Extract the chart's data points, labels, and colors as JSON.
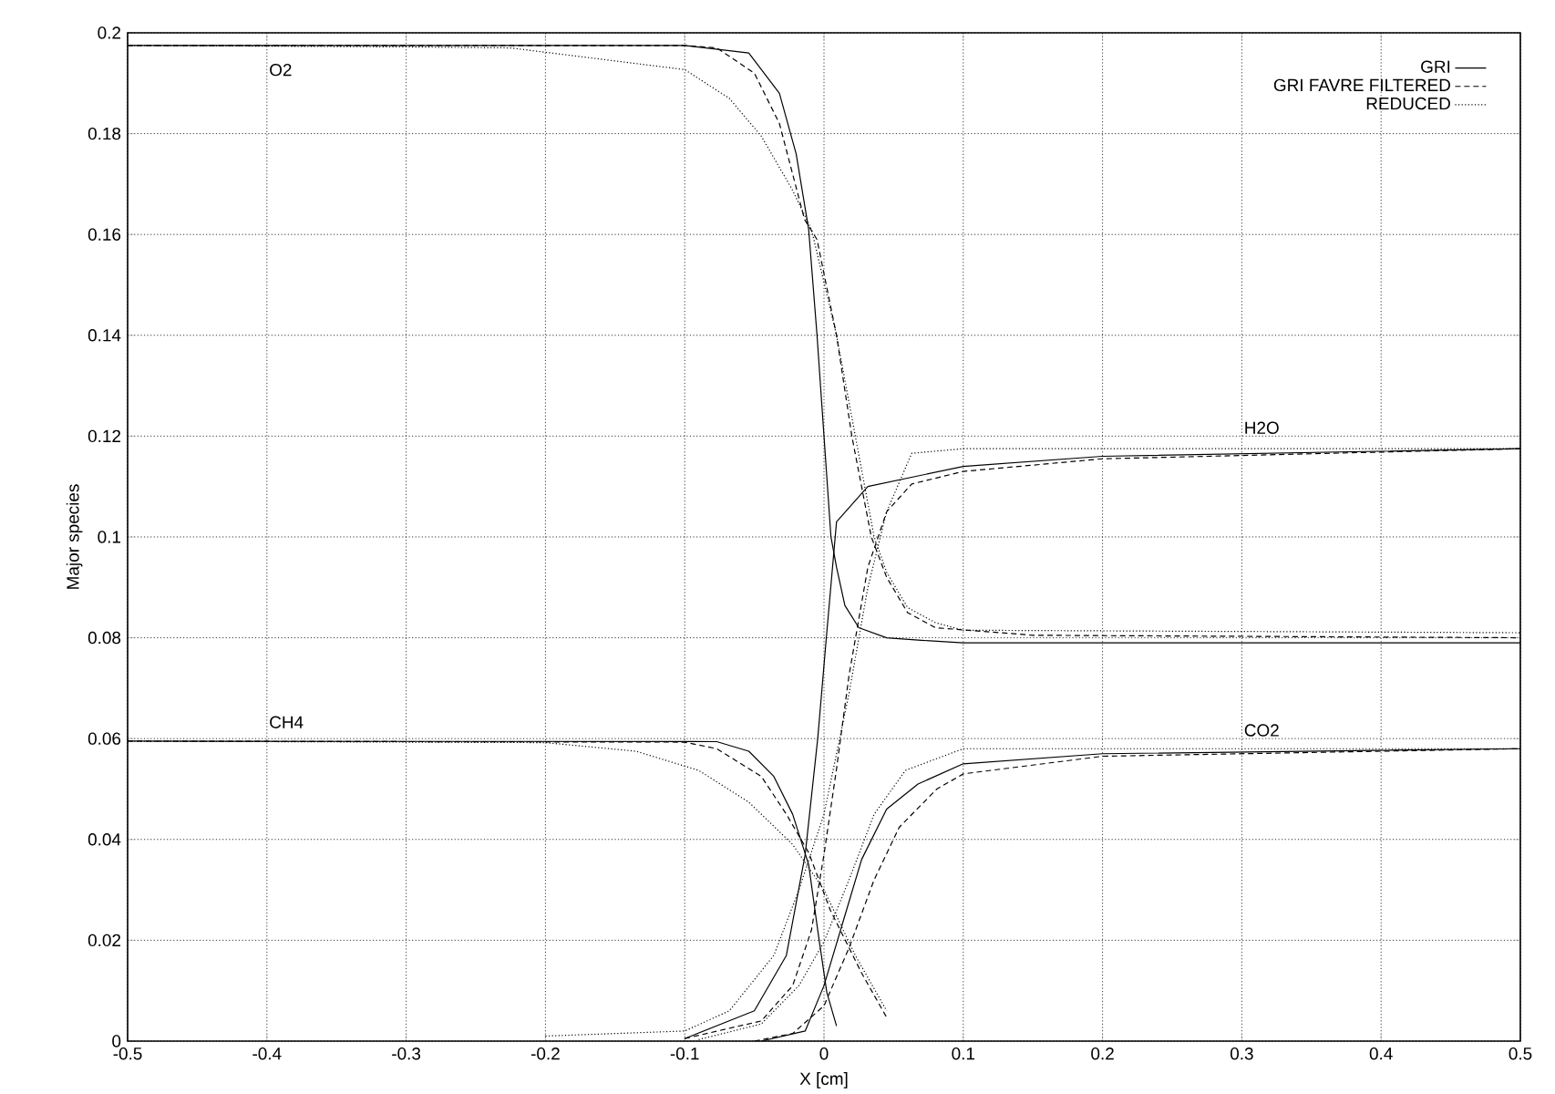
{
  "chart_data": {
    "type": "line",
    "xlabel": "X [cm]",
    "ylabel": "Major species",
    "xlim": [
      -0.5,
      0.5
    ],
    "ylim": [
      0,
      0.2
    ],
    "xticks": [
      -0.5,
      -0.4,
      -0.3,
      -0.2,
      -0.1,
      0,
      0.1,
      0.2,
      0.3,
      0.4,
      0.5
    ],
    "yticks": [
      0,
      0.02,
      0.04,
      0.06,
      0.08,
      0.1,
      0.12,
      0.14,
      0.16,
      0.18,
      0.2
    ],
    "grid": true,
    "legend": "top right",
    "marker": "none",
    "annotations": [
      "O2",
      "CH4",
      "H2O",
      "CO2"
    ],
    "series": [
      {
        "name": "GRI",
        "color": "#000000",
        "line_style": "solid",
        "x": [
          -0.5,
          -0.1,
          -0.054,
          -0.032,
          -0.02,
          -0.011,
          -0.005,
          0,
          0.005,
          0.009,
          0.015,
          0.025,
          0.045,
          0.07,
          0.1,
          0.2,
          0.5
        ],
        "values": [
          0.1975,
          0.1975,
          0.196,
          0.188,
          0.176,
          0.161,
          0.14,
          0.12,
          0.1,
          0.094,
          0.0864,
          0.082,
          0.08,
          0.0795,
          0.079,
          0.079,
          0.079
        ]
      },
      {
        "name": "GRI FAVRE FILTERED",
        "color": "#000000",
        "line_style": "dashed",
        "x": [
          -0.5,
          -0.1,
          -0.077,
          -0.05,
          -0.032,
          -0.014,
          -0.005,
          0.009,
          0.02,
          0.034,
          0.045,
          0.06,
          0.08,
          0.15,
          0.5
        ],
        "values": [
          0.1975,
          0.1975,
          0.197,
          0.192,
          0.182,
          0.163,
          0.159,
          0.14,
          0.12,
          0.1,
          0.092,
          0.085,
          0.082,
          0.0805,
          0.08
        ]
      },
      {
        "name": "REDUCED",
        "color": "#000000",
        "line_style": "dotted",
        "x": [
          -0.5,
          -0.3,
          -0.225,
          -0.1,
          -0.068,
          -0.045,
          -0.023,
          -0.009,
          0.009,
          0.0225,
          0.036,
          0.045,
          0.06,
          0.08,
          0.1,
          0.5
        ],
        "values": [
          0.1975,
          0.1972,
          0.197,
          0.1927,
          0.187,
          0.1795,
          0.169,
          0.161,
          0.14,
          0.12,
          0.1,
          0.093,
          0.086,
          0.083,
          0.0815,
          0.081
        ]
      },
      {
        "color": "#000000",
        "line_style": "solid",
        "x": [
          -0.1,
          -0.05,
          -0.027,
          -0.0135,
          -0.0045,
          0.002,
          0.009,
          0.0315,
          0.1,
          0.2,
          0.5
        ],
        "values": [
          0.0005,
          0.006,
          0.017,
          0.037,
          0.06,
          0.081,
          0.103,
          0.11,
          0.114,
          0.116,
          0.1175
        ]
      },
      {
        "color": "#000000",
        "line_style": "dashed",
        "x": [
          -0.1,
          -0.045,
          -0.0225,
          -0.009,
          0,
          0.009,
          0.018,
          0.0315,
          0.045,
          0.063,
          0.1,
          0.2,
          0.5
        ],
        "values": [
          0.0005,
          0.004,
          0.011,
          0.022,
          0.037,
          0.054,
          0.0726,
          0.094,
          0.105,
          0.1105,
          0.113,
          0.1155,
          0.1175
        ]
      },
      {
        "color": "#000000",
        "line_style": "dotted",
        "x": [
          -0.2,
          -0.1,
          -0.068,
          -0.036,
          -0.018,
          0,
          0.018,
          0.0315,
          0.045,
          0.063,
          0.1,
          0.5
        ],
        "values": [
          0.001,
          0.002,
          0.006,
          0.017,
          0.03,
          0.045,
          0.069,
          0.09,
          0.105,
          0.1166,
          0.1175,
          0.1175
        ]
      },
      {
        "color": "#000000",
        "line_style": "solid",
        "x": [
          -0.5,
          -0.077,
          -0.054,
          -0.036,
          -0.0225,
          -0.011,
          -0.0045,
          0.002,
          0.009
        ],
        "values": [
          0.0595,
          0.0594,
          0.0575,
          0.0525,
          0.045,
          0.035,
          0.022,
          0.0097,
          0.003
        ]
      },
      {
        "color": "#000000",
        "line_style": "dashed",
        "x": [
          -0.5,
          -0.1,
          -0.077,
          -0.045,
          -0.027,
          -0.011,
          0.0045,
          0.027,
          0.045
        ],
        "values": [
          0.0595,
          0.0593,
          0.058,
          0.0525,
          0.045,
          0.0374,
          0.026,
          0.0135,
          0.0047
        ]
      },
      {
        "color": "#000000",
        "line_style": "dotted",
        "x": [
          -0.5,
          -0.2,
          -0.135,
          -0.09,
          -0.054,
          -0.0225,
          0,
          0.0225,
          0.045
        ],
        "values": [
          0.0595,
          0.0592,
          0.0575,
          0.0537,
          0.0474,
          0.039,
          0.03,
          0.017,
          0.006
        ]
      },
      {
        "color": "#000000",
        "line_style": "solid",
        "x": [
          -0.045,
          -0.0135,
          0,
          0.0135,
          0.027,
          0.045,
          0.0675,
          0.1,
          0.2,
          0.5
        ],
        "values": [
          0,
          0.002,
          0.011,
          0.0235,
          0.036,
          0.046,
          0.051,
          0.055,
          0.057,
          0.058
        ]
      },
      {
        "color": "#000000",
        "line_style": "dashed",
        "x": [
          -0.05,
          -0.0225,
          0,
          0.018,
          0.036,
          0.054,
          0.081,
          0.1,
          0.2,
          0.5
        ],
        "values": [
          0,
          0.0015,
          0.007,
          0.0185,
          0.032,
          0.0424,
          0.05,
          0.053,
          0.0565,
          0.058
        ]
      },
      {
        "color": "#000000",
        "line_style": "dotted",
        "x": [
          -0.09,
          -0.045,
          -0.018,
          0,
          0.018,
          0.036,
          0.0585,
          0.1,
          0.5
        ],
        "values": [
          0.0003,
          0.0034,
          0.011,
          0.0197,
          0.032,
          0.045,
          0.0537,
          0.058,
          0.058
        ]
      }
    ]
  }
}
